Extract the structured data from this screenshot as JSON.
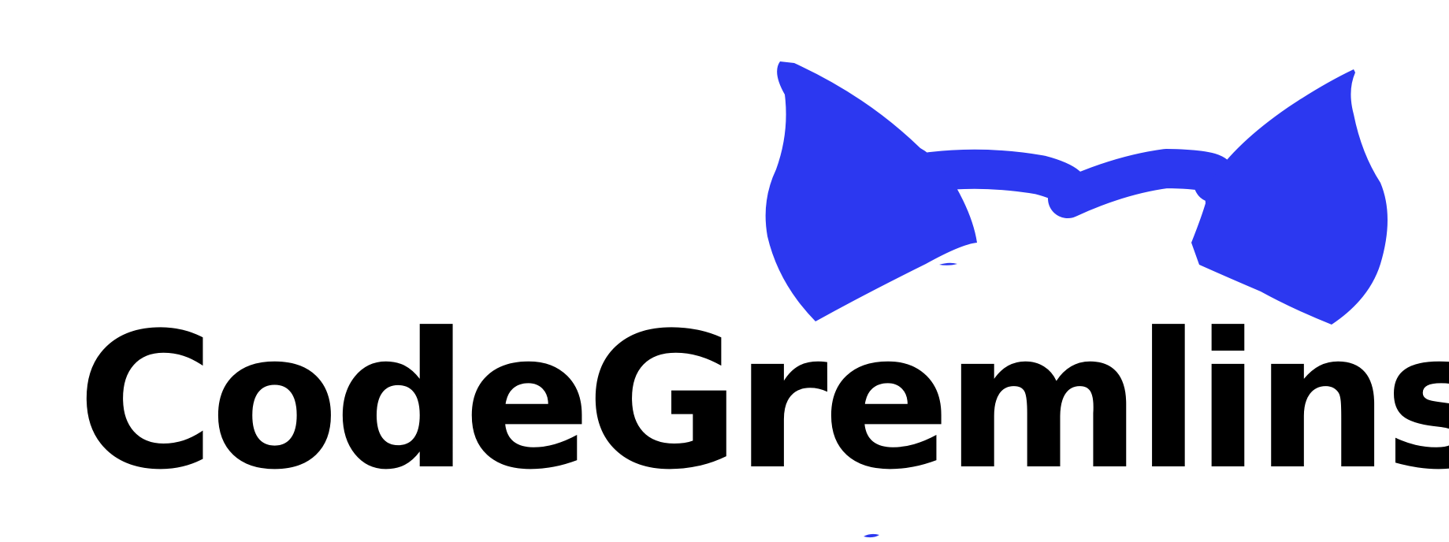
{
  "logo": {
    "wordmark": "CodeGremlins",
    "wordmark_color": "#000000",
    "icon_name": "gremlin-ears-icon",
    "icon_color": "#2c38f0",
    "background": "#ffffff"
  }
}
